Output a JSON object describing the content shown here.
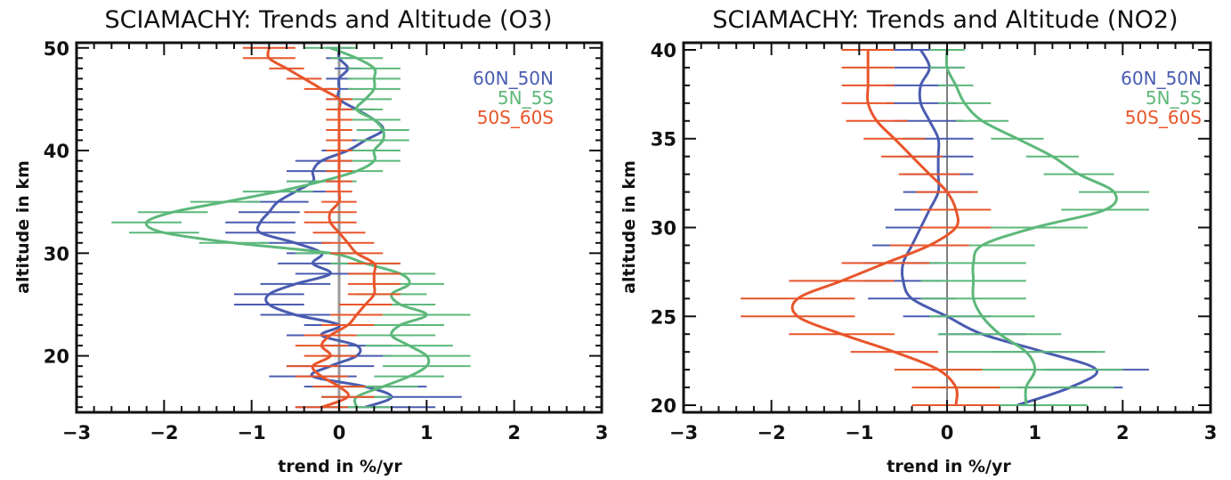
{
  "chart_data": [
    {
      "type": "line",
      "title": "SCIAMACHY: Trends and Altitude (O3)",
      "xlabel": "trend in %/yr",
      "ylabel": "altitude in km",
      "xlim": [
        -3,
        3
      ],
      "ylim": [
        14.5,
        50.5
      ],
      "xticks": [
        "-3",
        "-2",
        "-1",
        "0",
        "1",
        "2",
        "3"
      ],
      "yticks": [
        "20",
        "30",
        "40",
        "50"
      ],
      "legend_position": "top-right",
      "zero_line": true,
      "series": [
        {
          "name": "60N_50N",
          "color": "#4a5cb0",
          "altitude": [
            15,
            16,
            17,
            18,
            19,
            20,
            21,
            22,
            23,
            24,
            25,
            26,
            27,
            28,
            29,
            30,
            31,
            32,
            33,
            34,
            35,
            36,
            37,
            38,
            39,
            40,
            41,
            42,
            43,
            44,
            45,
            46,
            47,
            48,
            49,
            50
          ],
          "trend": [
            0.3,
            0.6,
            0.3,
            -0.3,
            -0.1,
            0.2,
            0.2,
            -0.2,
            0.0,
            -0.5,
            -0.8,
            -0.8,
            -0.5,
            -0.1,
            -0.3,
            -0.2,
            -0.5,
            -0.9,
            -0.9,
            -0.8,
            -0.7,
            -0.5,
            -0.3,
            -0.3,
            -0.2,
            0.1,
            0.3,
            0.5,
            0.4,
            0.2,
            0.0,
            0.0,
            0.0,
            0.1,
            0.0,
            0.0
          ],
          "error": [
            0.8,
            0.8,
            0.7,
            0.5,
            0.5,
            0.4,
            0.4,
            0.4,
            0.4,
            0.4,
            0.4,
            0.4,
            0.4,
            0.4,
            0.4,
            0.4,
            0.4,
            0.4,
            0.4,
            0.35,
            0.35,
            0.35,
            0.3,
            0.3,
            0.3,
            0.3,
            0.25,
            0.25,
            0.2,
            0.2,
            0.15,
            0.15,
            0.15,
            0.15,
            0.15,
            0.15
          ]
        },
        {
          "name": "5N_5S",
          "color": "#5cb87a",
          "altitude": [
            15,
            16,
            17,
            18,
            19,
            20,
            21,
            22,
            23,
            24,
            25,
            26,
            27,
            28,
            29,
            30,
            31,
            32,
            33,
            34,
            35,
            36,
            37,
            38,
            39,
            40,
            41,
            42,
            43,
            44,
            45,
            46,
            47,
            48,
            49,
            50
          ],
          "trend": [
            0.2,
            0.2,
            0.5,
            0.8,
            1.0,
            1.0,
            0.8,
            0.6,
            0.7,
            1.0,
            0.7,
            0.6,
            0.8,
            0.7,
            0.3,
            -0.1,
            -1.2,
            -2.0,
            -2.2,
            -1.9,
            -1.3,
            -0.7,
            -0.2,
            0.2,
            0.4,
            0.4,
            0.5,
            0.5,
            0.4,
            0.2,
            0.3,
            0.4,
            0.4,
            0.4,
            0.2,
            -0.1
          ],
          "error": [
            0.4,
            0.4,
            0.4,
            0.4,
            0.5,
            0.5,
            0.5,
            0.5,
            0.5,
            0.5,
            0.4,
            0.4,
            0.4,
            0.4,
            0.4,
            0.4,
            0.4,
            0.4,
            0.4,
            0.4,
            0.4,
            0.4,
            0.4,
            0.3,
            0.3,
            0.3,
            0.3,
            0.3,
            0.3,
            0.3,
            0.3,
            0.3,
            0.3,
            0.3,
            0.3,
            0.3
          ]
        },
        {
          "name": "50S_60S",
          "color": "#e8552a",
          "altitude": [
            15,
            16,
            17,
            18,
            19,
            20,
            21,
            22,
            23,
            24,
            25,
            26,
            27,
            28,
            29,
            30,
            31,
            32,
            33,
            34,
            35,
            36,
            37,
            38,
            39,
            40,
            41,
            42,
            43,
            44,
            45,
            46,
            47,
            48,
            49,
            50
          ],
          "trend": [
            -0.2,
            0.1,
            0.0,
            -0.2,
            -0.3,
            -0.1,
            -0.2,
            -0.1,
            0.1,
            0.2,
            0.3,
            0.4,
            0.4,
            0.4,
            0.4,
            0.2,
            0.1,
            0.0,
            -0.1,
            -0.1,
            0.0,
            0.0,
            0.0,
            0.0,
            0.0,
            0.0,
            0.0,
            0.0,
            0.0,
            0.0,
            0.0,
            -0.2,
            -0.4,
            -0.6,
            -0.8,
            -0.8
          ],
          "error": [
            0.3,
            0.3,
            0.3,
            0.3,
            0.3,
            0.3,
            0.3,
            0.3,
            0.3,
            0.3,
            0.3,
            0.3,
            0.3,
            0.3,
            0.3,
            0.3,
            0.3,
            0.3,
            0.3,
            0.3,
            0.2,
            0.15,
            0.15,
            0.15,
            0.15,
            0.15,
            0.15,
            0.15,
            0.15,
            0.15,
            0.15,
            0.2,
            0.2,
            0.2,
            0.3,
            0.3
          ]
        }
      ]
    },
    {
      "type": "line",
      "title": "SCIAMACHY: Trends and Altitude (NO2)",
      "xlabel": "trend in %/yr",
      "ylabel": "altitude in km",
      "xlim": [
        -3,
        3
      ],
      "ylim": [
        19.6,
        40.4
      ],
      "xticks": [
        "-3",
        "-2",
        "-1",
        "0",
        "1",
        "2",
        "3"
      ],
      "yticks": [
        "20",
        "25",
        "30",
        "35",
        "40"
      ],
      "legend_position": "top-right",
      "zero_line": true,
      "series": [
        {
          "name": "60N_50N",
          "color": "#4a5cb0",
          "altitude": [
            20,
            21,
            22,
            23,
            24,
            25,
            26,
            27,
            28,
            29,
            30,
            31,
            32,
            33,
            34,
            35,
            36,
            37,
            38,
            39,
            40
          ],
          "trend": [
            0.8,
            1.4,
            1.7,
            1.1,
            0.4,
            0.0,
            -0.4,
            -0.5,
            -0.5,
            -0.4,
            -0.3,
            -0.2,
            -0.1,
            -0.1,
            -0.1,
            -0.1,
            -0.2,
            -0.3,
            -0.3,
            -0.2,
            -0.3
          ],
          "error": [
            0.6,
            0.6,
            0.6,
            0.6,
            0.5,
            0.5,
            0.5,
            0.45,
            0.45,
            0.45,
            0.4,
            0.4,
            0.4,
            0.4,
            0.4,
            0.4,
            0.4,
            0.4,
            0.4,
            0.4,
            0.35
          ]
        },
        {
          "name": "5N_5S",
          "color": "#5cb87a",
          "altitude": [
            20,
            21,
            22,
            23,
            24,
            25,
            26,
            27,
            28,
            29,
            30,
            31,
            32,
            33,
            34,
            35,
            36,
            37,
            38,
            39,
            40
          ],
          "trend": [
            0.9,
            0.9,
            1.0,
            0.9,
            0.6,
            0.4,
            0.3,
            0.3,
            0.3,
            0.4,
            1.0,
            1.8,
            1.9,
            1.5,
            1.2,
            0.8,
            0.4,
            0.2,
            0.1,
            0.0,
            0.0
          ],
          "error": [
            0.7,
            1.0,
            1.0,
            0.9,
            0.7,
            0.6,
            0.6,
            0.6,
            0.6,
            0.6,
            0.6,
            0.5,
            0.4,
            0.4,
            0.3,
            0.3,
            0.3,
            0.3,
            0.2,
            0.2,
            0.2
          ]
        },
        {
          "name": "50S_60S",
          "color": "#e8552a",
          "altitude": [
            20,
            21,
            22,
            23,
            24,
            25,
            26,
            27,
            28,
            29,
            30,
            31,
            32,
            33,
            34,
            35,
            36,
            37,
            38,
            39,
            40
          ],
          "trend": [
            0.1,
            0.1,
            -0.1,
            -0.6,
            -1.2,
            -1.7,
            -1.7,
            -1.2,
            -0.7,
            -0.2,
            0.1,
            0.1,
            0.0,
            -0.2,
            -0.4,
            -0.6,
            -0.8,
            -0.9,
            -0.9,
            -0.9,
            -0.9
          ],
          "error": [
            0.5,
            0.5,
            0.5,
            0.5,
            0.6,
            0.65,
            0.65,
            0.6,
            0.5,
            0.45,
            0.4,
            0.4,
            0.35,
            0.35,
            0.35,
            0.35,
            0.35,
            0.3,
            0.3,
            0.3,
            0.3
          ]
        }
      ]
    }
  ]
}
